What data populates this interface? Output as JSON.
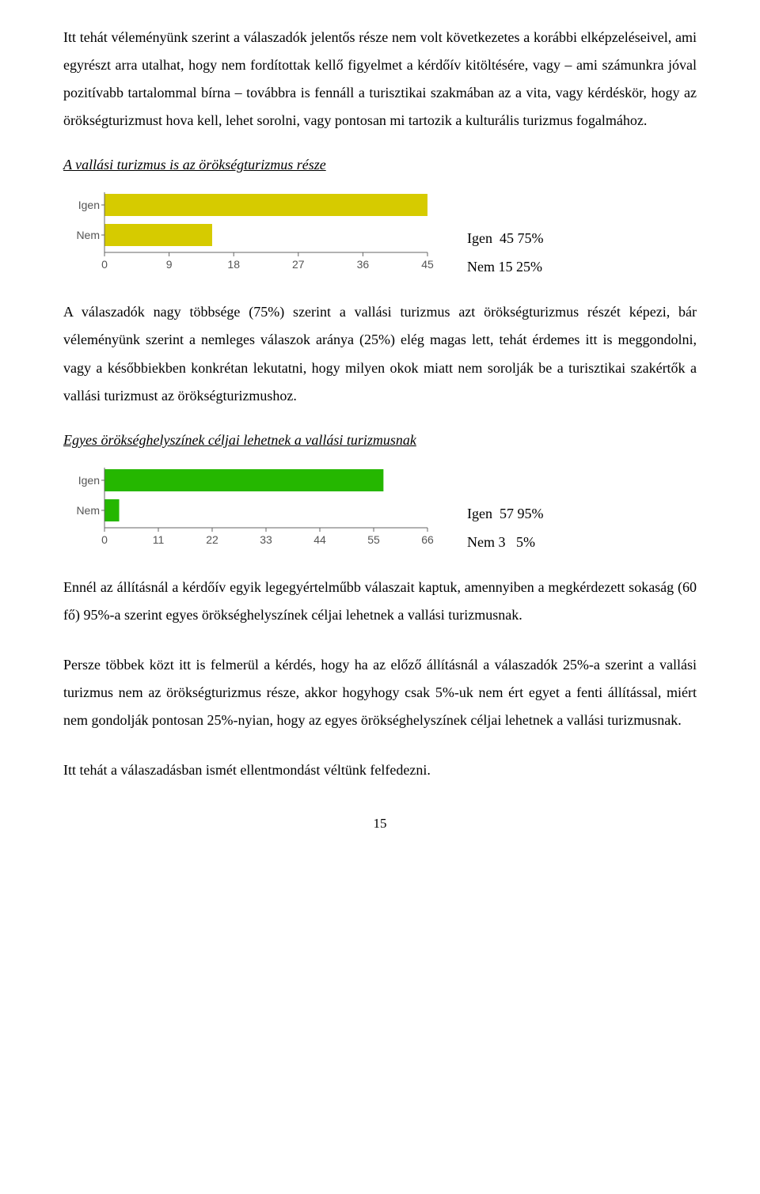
{
  "para1": "Itt tehát véleményünk szerint a válaszadók jelentős része nem volt következetes a korábbi elképzeléseivel, ami egyrészt arra utalhat, hogy nem fordítottak kellő figyelmet a kérdőív kitöltésére, vagy – ami számunkra jóval pozitívabb tartalommal bírna – továbbra is fennáll a turisztikai szakmában az a vita, vagy kérdéskör, hogy az örökségturizmust hova kell, lehet sorolni, vagy pontosan mi tartozik a kulturális turizmus fogalmához.",
  "chart1": {
    "title": "A vallási turizmus is az örökségturizmus része",
    "igen_label": "Igen",
    "nem_label": "Nem",
    "ticks": [
      "0",
      "9",
      "18",
      "27",
      "36",
      "45"
    ],
    "igen_val": 45,
    "nem_val": 15,
    "max": 45,
    "igen_color": "#d6cb00",
    "nem_color": "#d6cb00",
    "legend_igen": "Igen  45 75%",
    "legend_nem": "Nem 15 25%"
  },
  "para2": "A válaszadók nagy többsége (75%) szerint a vallási turizmus azt örökségturizmus részét képezi, bár véleményünk szerint a nemleges válaszok aránya (25%) elég magas lett, tehát érdemes itt is meggondolni, vagy a későbbiekben konkrétan lekutatni, hogy milyen okok miatt nem sorolják be a turisztikai szakértők a vallási turizmust az örökségturizmushoz.",
  "chart2": {
    "title": "Egyes örökséghelyszínek céljai lehetnek a vallási turizmusnak",
    "igen_label": "Igen",
    "nem_label": "Nem",
    "ticks": [
      "0",
      "11",
      "22",
      "33",
      "44",
      "55",
      "66"
    ],
    "igen_val": 57,
    "nem_val": 3,
    "max": 66,
    "igen_color": "#25b700",
    "nem_color": "#25b700",
    "legend_igen": "Igen  57 95%",
    "legend_nem": "Nem 3   5%"
  },
  "para3": "Ennél az állításnál a kérdőív egyik legegyértelműbb válaszait kaptuk, amennyiben a megkérdezett sokaság (60 fő) 95%-a szerint egyes örökséghelyszínek céljai lehetnek a vallási turizmusnak.",
  "para4": "Persze többek közt itt is felmerül a kérdés, hogy ha az előző állításnál a válaszadók 25%-a szerint a vallási turizmus nem az örökségturizmus része, akkor hogyhogy csak 5%-uk nem ért egyet a fenti állítással, miért nem gondolják pontosan 25%-nyian, hogy az egyes örökséghelyszínek céljai lehetnek a vallási turizmusnak.",
  "para5": "Itt tehát a válaszadásban ismét ellentmondást véltünk felfedezni.",
  "page_number": "15"
}
